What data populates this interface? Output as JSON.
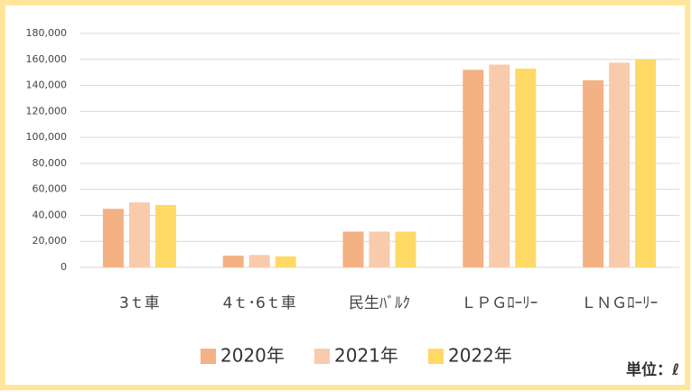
{
  "chart_data": {
    "type": "bar",
    "categories": [
      "3ｔ車",
      "4ｔ･6ｔ車",
      "民生ﾊﾞﾙｸ",
      "ＬＰＧﾛｰﾘｰ",
      "ＬＮＧﾛｰﾘｰ"
    ],
    "series": [
      {
        "name": "2020年",
        "color": "#f4b183",
        "values": [
          45000,
          9000,
          27500,
          152000,
          144000
        ]
      },
      {
        "name": "2021年",
        "color": "#f8cbad",
        "values": [
          50000,
          9500,
          27500,
          156000,
          157500
        ]
      },
      {
        "name": "2022年",
        "color": "#ffd966",
        "values": [
          48000,
          8500,
          27500,
          153000,
          160000
        ]
      }
    ],
    "ylim": [
      0,
      180000
    ],
    "yticks": [
      0,
      {
        "value": 20000,
        "label": "20,000"
      },
      {
        "value": 40000,
        "label": "40,000"
      },
      {
        "value": 60000,
        "label": "60,000"
      },
      {
        "value": 80000,
        "label": "80,000"
      },
      {
        "value": 100000,
        "label": "100,000"
      },
      {
        "value": 120000,
        "label": "120,000"
      },
      {
        "value": 140000,
        "label": "140,000"
      },
      {
        "value": 160000,
        "label": "160,000"
      },
      {
        "value": 180000,
        "label": "180,000"
      }
    ],
    "grid": true,
    "unit_note": "単位：ℓ"
  }
}
